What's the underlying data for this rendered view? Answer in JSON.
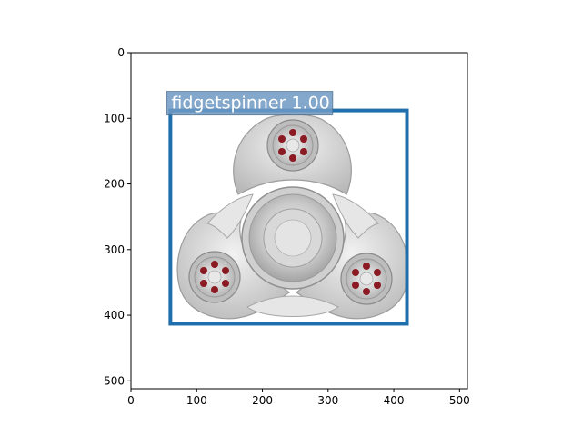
{
  "figure": {
    "x_ticks": [
      "0",
      "100",
      "200",
      "300",
      "400",
      "500"
    ],
    "y_ticks": [
      "0",
      "100",
      "200",
      "300",
      "400",
      "500"
    ],
    "image_extent": [
      0,
      512
    ],
    "grid": false
  },
  "detection": {
    "label": "fidgetspinner 1.00",
    "box": {
      "x0": 60,
      "y0": 88,
      "x1": 420,
      "y1": 413
    },
    "color": "#1f6fad",
    "label_bg": "#6f9ac4"
  },
  "spinner": {
    "icon": "fidget-spinner-photo",
    "body_color": "#dcdcdc",
    "bearing_ball_color": "#8b1a22"
  }
}
